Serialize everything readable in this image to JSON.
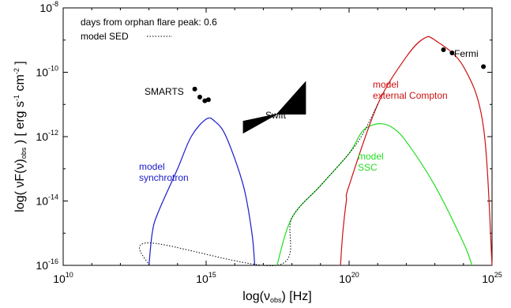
{
  "chart_data": {
    "type": "line",
    "x_scale": "log",
    "y_scale": "log",
    "xlim": [
      10000000000.0,
      1e+25
    ],
    "ylim": [
      1e-16,
      1e-08
    ],
    "x_ticks": [
      {
        "base": "10",
        "exp": "10",
        "value": 10000000000.0
      },
      {
        "base": "10",
        "exp": "15",
        "value": 1000000000000000.0
      },
      {
        "base": "10",
        "exp": "20",
        "value": 1e+20
      },
      {
        "base": "10",
        "exp": "25",
        "value": 1e+25
      }
    ],
    "y_ticks": [
      {
        "base": "10",
        "exp": "-16",
        "value": 1e-16
      },
      {
        "base": "10",
        "exp": "-14",
        "value": 1e-14
      },
      {
        "base": "10",
        "exp": "-12",
        "value": 1e-12
      },
      {
        "base": "10",
        "exp": "-10",
        "value": 1e-10
      },
      {
        "base": "10",
        "exp": "-8",
        "value": 1e-08
      }
    ],
    "xlabel": {
      "pre": "log(ν",
      "sub": "obs",
      "post": ") [Hz]"
    },
    "ylabel": {
      "pre": "log( νF(ν)",
      "sub": "obs",
      "mid": " ) [ erg s",
      "sup1": "-1",
      "mid2": " cm",
      "sup2": "-2",
      "post": " ]"
    },
    "legend": {
      "line1": "days from orphan flare peak: 0.6",
      "line2": "model SED",
      "placement": "top-left",
      "model_sed_style": "dotted",
      "model_sed_color": "#000000"
    },
    "series": [
      {
        "name": "model synchrotron",
        "label_lines": [
          "model",
          "synchrotron"
        ],
        "color": "#1a1acc",
        "style": "solid",
        "points": [
          [
            10000000000000.0,
            1e-16
          ],
          [
            13000000000000.0,
            1e-15
          ],
          [
            20000000000000.0,
            4e-15
          ],
          [
            100000000000000.0,
            1e-13
          ],
          [
            300000000000000.0,
            1e-12
          ],
          [
            1000000000000000.0,
            3.5e-12
          ],
          [
            2000000000000000.0,
            3e-12
          ],
          [
            5000000000000000.0,
            1e-12
          ],
          [
            2e+16,
            3e-14
          ],
          [
            4e+16,
            1e-15
          ],
          [
            5e+16,
            1e-16
          ]
        ]
      },
      {
        "name": "model SSC",
        "label_lines": [
          "model",
          "SSC"
        ],
        "color": "#22dd22",
        "style": "solid",
        "points": [
          [
            3e+17,
            1e-16
          ],
          [
            1e+18,
            3e-15
          ],
          [
            1e+19,
            3e-14
          ],
          [
            1e+20,
            3e-13
          ],
          [
            3e+20,
            1.5e-12
          ],
          [
            1e+21,
            2.5e-12
          ],
          [
            3e+21,
            2e-12
          ],
          [
            1e+22,
            7e-13
          ],
          [
            1e+23,
            3e-14
          ],
          [
            1e+24,
            5e-16
          ],
          [
            2e+24,
            1e-16
          ]
        ]
      },
      {
        "name": "model external Compton",
        "label_lines": [
          "model",
          "external Compton"
        ],
        "color": "#cc1111",
        "style": "solid",
        "points": [
          [
            5e+19,
            1e-16
          ],
          [
            6e+19,
            1e-15
          ],
          [
            8e+19,
            1e-14
          ],
          [
            1e+20,
            3e-14
          ],
          [
            1e+21,
            1e-11
          ],
          [
            1e+22,
            3e-10
          ],
          [
            4e+22,
            1.1e-09
          ],
          [
            1e+23,
            1e-09
          ],
          [
            1e+24,
            1.5e-10
          ],
          [
            5e+24,
            2e-12
          ],
          [
            1e+25,
            1e-16
          ]
        ]
      },
      {
        "name": "model SED",
        "color": "#000000",
        "style": "dotted",
        "points": [
          [
            10000000000000.0,
            1e-16
          ],
          [
            10000000000000.0,
            5e-16
          ],
          [
            3e+17,
            1e-16
          ],
          [
            1e+18,
            3e-15
          ],
          [
            1e+19,
            3e-14
          ],
          [
            1e+20,
            3e-13
          ],
          [
            3e+20,
            1.2e-12
          ],
          [
            1e+21,
            1e-11
          ]
        ]
      }
    ],
    "observations": [
      {
        "name": "SMARTS",
        "color": "#000000",
        "points": [
          [
            400000000000000.0,
            3e-11
          ],
          [
            600000000000000.0,
            1.7e-11
          ],
          [
            900000000000000.0,
            1.3e-11
          ],
          [
            1200000000000000.0,
            1.4e-11
          ]
        ]
      },
      {
        "name": "Fermi",
        "color": "#000000",
        "points": [
          [
            2e+23,
            5e-10
          ],
          [
            4e+23,
            4e-10
          ],
          [
            5e+24,
            1.5e-10
          ]
        ]
      }
    ],
    "bowtie": {
      "name": "Swift",
      "color": "#000000",
      "x_range": [
        2e+16,
        3e+18
      ],
      "left_y_range": [
        1.3e-12,
        3e-12
      ],
      "pivot_x": 3e+17,
      "pivot_y": 5e-12,
      "right_y_range": [
        5e-12,
        5e-11
      ]
    }
  }
}
